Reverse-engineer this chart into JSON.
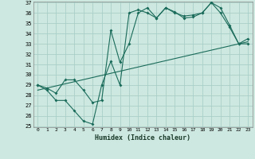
{
  "title": "",
  "xlabel": "Humidex (Indice chaleur)",
  "bg_color": "#cde8e0",
  "line_color": "#1a6b5a",
  "grid_color": "#aacfc7",
  "xmin": -0.5,
  "xmax": 23.5,
  "ymin": 25,
  "ymax": 37,
  "yticks": [
    25,
    26,
    27,
    28,
    29,
    30,
    31,
    32,
    33,
    34,
    35,
    36,
    37
  ],
  "xticks": [
    0,
    1,
    2,
    3,
    4,
    5,
    6,
    7,
    8,
    9,
    10,
    11,
    12,
    13,
    14,
    15,
    16,
    17,
    18,
    19,
    20,
    21,
    22,
    23
  ],
  "line1_x": [
    0,
    1,
    2,
    3,
    4,
    5,
    6,
    7,
    8,
    9,
    10,
    11,
    12,
    13,
    14,
    15,
    16,
    17,
    18,
    19,
    20,
    21,
    22,
    23
  ],
  "line1_y": [
    29,
    28.5,
    27.5,
    27.5,
    26.5,
    25.5,
    25.2,
    29.0,
    31.3,
    29.0,
    36.0,
    36.3,
    36.0,
    35.5,
    36.5,
    36.1,
    35.5,
    35.6,
    36.0,
    37.0,
    36.5,
    34.8,
    33.0,
    33.0
  ],
  "line2_x": [
    0,
    1,
    2,
    3,
    4,
    5,
    6,
    7,
    8,
    9,
    10,
    11,
    12,
    13,
    14,
    15,
    16,
    17,
    18,
    19,
    20,
    21,
    22,
    23
  ],
  "line2_y": [
    29,
    28.7,
    28.2,
    29.5,
    29.5,
    28.5,
    27.3,
    27.5,
    34.3,
    31.2,
    33.0,
    36.0,
    36.5,
    35.5,
    36.5,
    36.0,
    35.7,
    35.8,
    36.0,
    37.0,
    36.0,
    34.6,
    33.0,
    33.5
  ],
  "line3_x": [
    0,
    23
  ],
  "line3_y": [
    28.5,
    33.2
  ]
}
